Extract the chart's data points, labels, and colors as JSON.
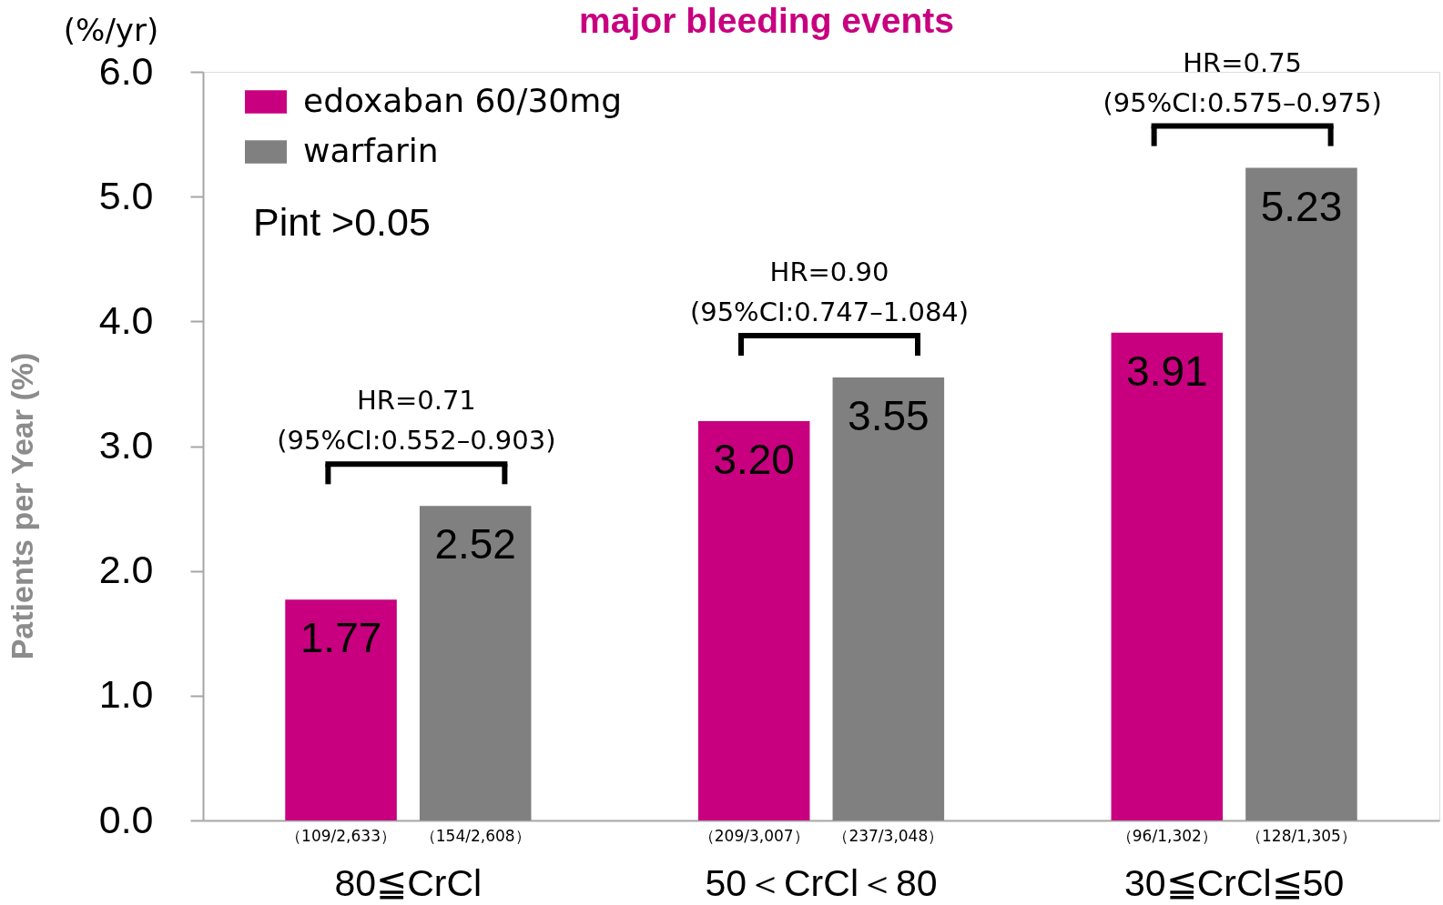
{
  "chart_data": {
    "type": "bar",
    "title": "major bleeding events",
    "ylabel": "Patients per Year (%)",
    "categories": [
      "80≦CrCl",
      "50＜CrCl＜80",
      "30≦CrCl≦50"
    ],
    "series": [
      {
        "name": "edoxaban 60/30mg",
        "color": "#c8007f",
        "values": [
          1.77,
          3.2,
          3.91
        ],
        "value_labels": [
          "1.77",
          "3.20",
          "3.91"
        ]
      },
      {
        "name": "warfarin",
        "color": "#808080",
        "values": [
          2.52,
          3.55,
          5.23
        ],
        "value_labels": [
          "2.52",
          "3.55",
          "5.23"
        ]
      }
    ],
    "ylim": [
      0,
      6
    ],
    "yticks": [
      {
        "value": 0,
        "label": "0.0"
      },
      {
        "value": 1,
        "label": "1.0"
      },
      {
        "value": 2,
        "label": "2.0"
      },
      {
        "value": 3,
        "label": "3.0"
      },
      {
        "value": 4,
        "label": "4.0"
      },
      {
        "value": 5,
        "label": "5.0"
      },
      {
        "value": 6,
        "label": "6.0"
      }
    ],
    "legend": "top left",
    "annotations": [
      "(%/yr)",
      "Pint >0.05",
      "HR=0.71\n(95%CI:0.552–0.903)",
      "HR=0.90\n(95%CI:0.747–1.084)",
      "HR=0.75\n(95%CI:0.575–0.975)",
      "（109/2,633）",
      "（154/2,608）",
      "（209/3,007）",
      "（237/3,048）",
      "（96/1,302）",
      "（128/1,305）"
    ]
  }
}
